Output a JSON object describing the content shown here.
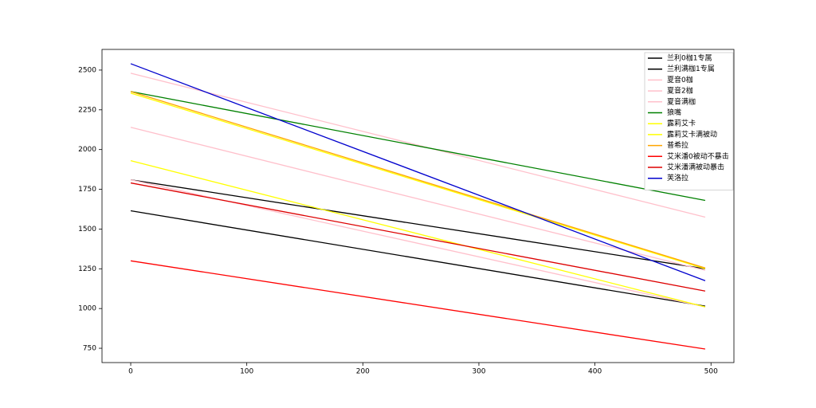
{
  "chart_data": {
    "type": "line",
    "x": [
      0,
      495
    ],
    "series": [
      {
        "name": "兰利0枷1专属",
        "color": "#000000",
        "values": [
          1615,
          1015
        ]
      },
      {
        "name": "兰利满枷1专属",
        "color": "#000000",
        "values": [
          1810,
          1250
        ]
      },
      {
        "name": "夏音0枷",
        "color": "#ffc0cb",
        "values": [
          1810,
          1010
        ]
      },
      {
        "name": "夏音2枷",
        "color": "#ffc0cb",
        "values": [
          2140,
          1240
        ]
      },
      {
        "name": "夏音满枷",
        "color": "#ffc0cb",
        "values": [
          2480,
          1575
        ]
      },
      {
        "name": "狼嘴",
        "color": "#008000",
        "values": [
          2365,
          1680
        ]
      },
      {
        "name": "露莉艾卡",
        "color": "#ffff00",
        "values": [
          1930,
          1010
        ]
      },
      {
        "name": "露莉艾卡满被动",
        "color": "#ffff00",
        "values": [
          2355,
          1250
        ]
      },
      {
        "name": "普希拉",
        "color": "#ffa500",
        "values": [
          2365,
          1255
        ]
      },
      {
        "name": "艾米潘0被动不暴击",
        "color": "#ff0000",
        "values": [
          1300,
          745
        ]
      },
      {
        "name": "艾米潘满被动暴击",
        "color": "#dd0000",
        "values": [
          1790,
          1110
        ]
      },
      {
        "name": "芙洛拉",
        "color": "#0000cd",
        "values": [
          2540,
          1175
        ]
      }
    ],
    "xlim": [
      -24.75,
      519.75
    ],
    "xticks": [
      0,
      100,
      200,
      300,
      400,
      500
    ],
    "ylim": [
      660,
      2630
    ],
    "yticks": [
      750,
      1000,
      1250,
      1500,
      1750,
      2000,
      2250,
      2500
    ],
    "legend": "upper right"
  }
}
